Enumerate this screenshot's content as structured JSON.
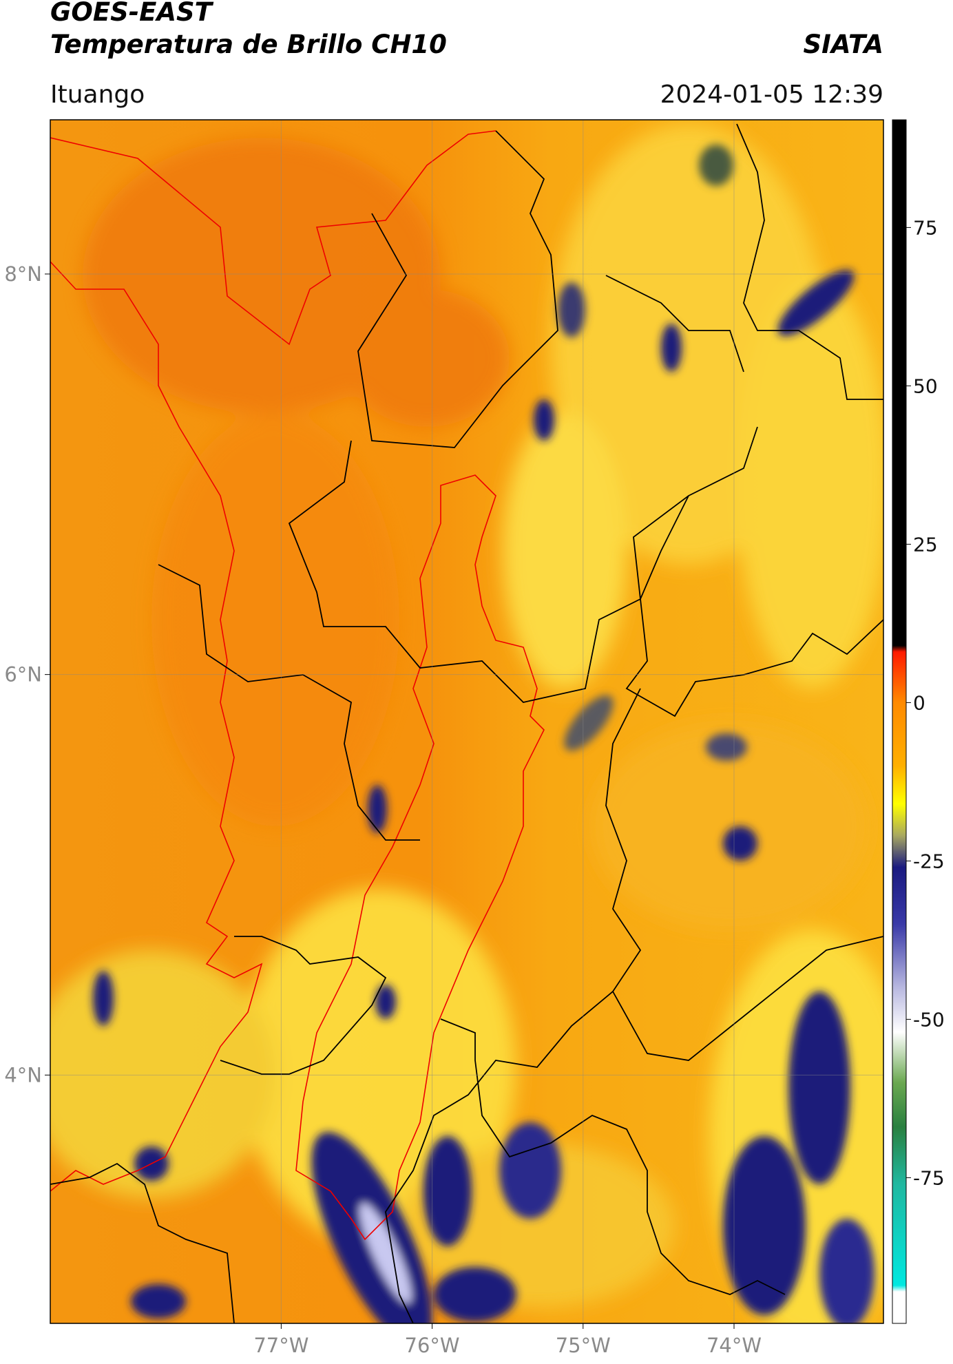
{
  "header": {
    "title": "GOES-EAST",
    "subtitle": "Temperatura de Brillo CH10",
    "source": "SIATA",
    "region": "Ituango",
    "datetime": "2024-01-05 12:39"
  },
  "map": {
    "xlim": [
      -78.53,
      -73.01
    ],
    "ylim": [
      2.76,
      8.77
    ],
    "xticks": [
      {
        "value": -77,
        "label": "77°W"
      },
      {
        "value": -76,
        "label": "76°W"
      },
      {
        "value": -75,
        "label": "75°W"
      },
      {
        "value": -74,
        "label": "74°W"
      }
    ],
    "yticks": [
      {
        "value": 8,
        "label": "8°N"
      },
      {
        "value": 6,
        "label": "6°N"
      },
      {
        "value": 4,
        "label": "4°N"
      }
    ],
    "grid": true
  },
  "colorbar": {
    "lim": [
      -98,
      92
    ],
    "ticks": [
      75,
      50,
      25,
      0,
      -25,
      -50,
      -75
    ],
    "stops": [
      {
        "value": 92,
        "color": "#000000"
      },
      {
        "value": 9,
        "color": "#000000"
      },
      {
        "value": 8,
        "color": "#ff1a00"
      },
      {
        "value": 0,
        "color": "#ff8a00"
      },
      {
        "value": -10,
        "color": "#ffb000"
      },
      {
        "value": -16,
        "color": "#ffff00"
      },
      {
        "value": -21,
        "color": "#a8a860"
      },
      {
        "value": -26,
        "color": "#1a1a80"
      },
      {
        "value": -35,
        "color": "#3a3aa8"
      },
      {
        "value": -45,
        "color": "#b8b8e0"
      },
      {
        "value": -52,
        "color": "#ffffff"
      },
      {
        "value": -60,
        "color": "#6aa850"
      },
      {
        "value": -67,
        "color": "#2a8040"
      },
      {
        "value": -76,
        "color": "#20b8a0"
      },
      {
        "value": -92,
        "color": "#00e8e0"
      },
      {
        "value": -93,
        "color": "#ffffff"
      },
      {
        "value": -98,
        "color": "#ffffff"
      }
    ]
  }
}
